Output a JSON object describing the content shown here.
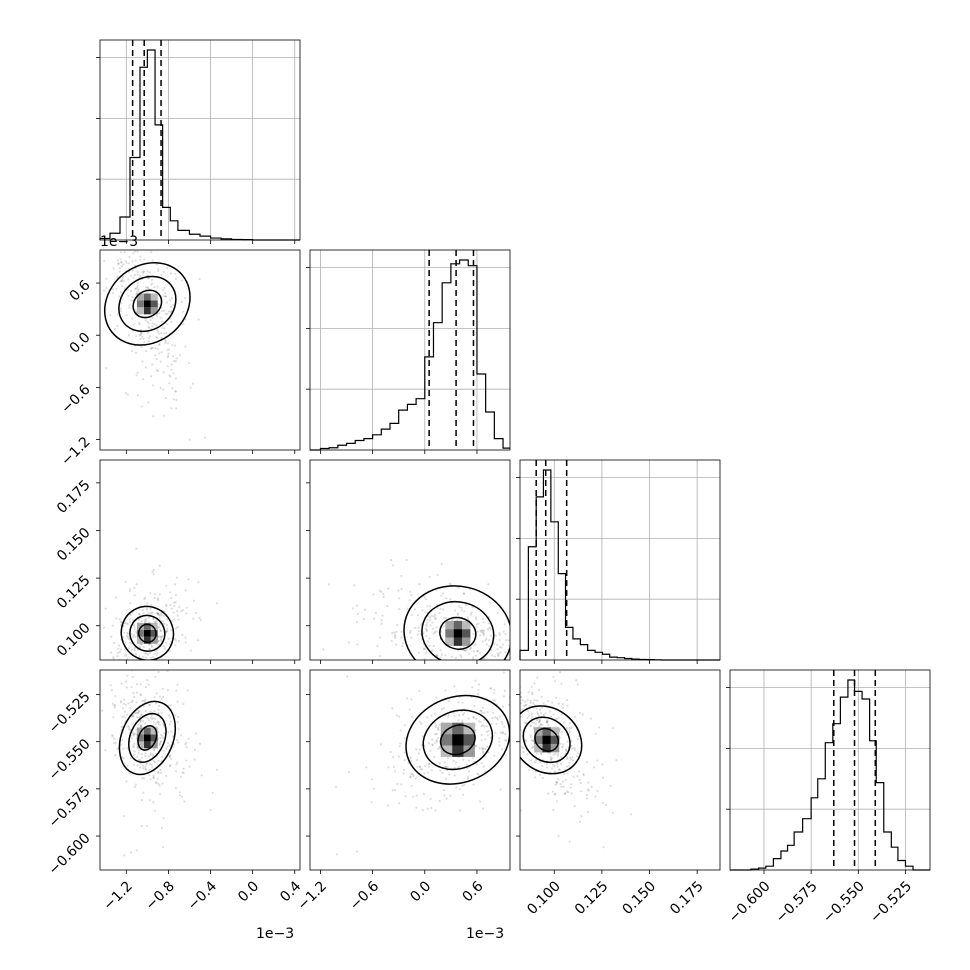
{
  "chart_data": {
    "type": "corner",
    "title": "",
    "grid": true,
    "parameters": [
      {
        "tick_labels": [
          "−1.2",
          "−0.8",
          "−0.4",
          "0.0",
          "0.4"
        ],
        "offset_label": "1e−3",
        "range": [
          -1.45,
          0.45
        ]
      },
      {
        "tick_labels": [
          "−1.2",
          "−0.6",
          "0.0",
          "0.6"
        ],
        "offset_label": "1e−3",
        "range": [
          -1.32,
          0.98
        ]
      },
      {
        "tick_labels": [
          "0.100",
          "0.125",
          "0.150",
          "0.175"
        ],
        "offset_label": "",
        "range": [
          0.082,
          0.187
        ]
      },
      {
        "tick_labels": [
          "−0.600",
          "−0.575",
          "−0.550",
          "−0.525"
        ],
        "offset_label": "",
        "range": [
          -0.618,
          -0.512
        ]
      }
    ],
    "tick_values": [
      [
        -1.2,
        -0.8,
        -0.4,
        0.0,
        0.4
      ],
      [
        -1.2,
        -0.6,
        0.0,
        0.6
      ],
      [
        0.1,
        0.125,
        0.15,
        0.175
      ],
      [
        -0.6,
        -0.575,
        -0.55,
        -0.525
      ]
    ],
    "quantiles": [
      [
        -1.14,
        -1.03,
        -0.87
      ],
      [
        0.05,
        0.36,
        0.56
      ],
      [
        0.0905,
        0.0955,
        0.1065
      ],
      [
        -0.563,
        -0.552,
        -0.541
      ]
    ],
    "histograms": [
      {
        "bin_edges": [
          -1.45,
          -1.355,
          -1.26,
          -1.165,
          -1.07,
          -1.0,
          -0.927,
          -0.855,
          -0.782,
          -0.71,
          -0.6,
          -0.5,
          -0.4,
          -0.3,
          -0.2,
          -0.1,
          0.0,
          0.45
        ],
        "counts": [
          0.8,
          3.5,
          12,
          43,
          90,
          99,
          60,
          17,
          10,
          5,
          3,
          2,
          1,
          0.6,
          0.3,
          0.2,
          0
        ]
      },
      {
        "bin_edges": [
          -1.32,
          -1.2,
          -1.1,
          -1.0,
          -0.9,
          -0.8,
          -0.7,
          -0.6,
          -0.5,
          -0.4,
          -0.3,
          -0.2,
          -0.1,
          0.0,
          0.1,
          0.2,
          0.3,
          0.4,
          0.5,
          0.6,
          0.7,
          0.8,
          0.9,
          0.98
        ],
        "counts": [
          0,
          0.8,
          1.2,
          2.5,
          3.5,
          5,
          6,
          8,
          11,
          14,
          21,
          24,
          27,
          49,
          67,
          88,
          98,
          100,
          97,
          40,
          20,
          6,
          1
        ]
      },
      {
        "bin_edges": [
          0.082,
          0.0864,
          0.0905,
          0.0943,
          0.0982,
          0.1021,
          0.1059,
          0.1098,
          0.1137,
          0.1175,
          0.1214,
          0.1253,
          0.1291,
          0.133,
          0.1369,
          0.1407,
          0.1446,
          0.1485,
          0.1524,
          0.1562,
          0.187
        ],
        "counts": [
          5,
          59,
          85,
          99,
          72,
          45,
          17,
          11,
          8,
          5,
          4,
          3,
          1.5,
          1.2,
          0.8,
          0.5,
          0.3,
          0.2,
          0.1,
          0
        ]
      },
      {
        "bin_edges": [
          -0.618,
          -0.6069,
          -0.6028,
          -0.599,
          -0.595,
          -0.591,
          -0.5875,
          -0.584,
          -0.5795,
          -0.575,
          -0.5715,
          -0.5675,
          -0.5635,
          -0.5595,
          -0.5555,
          -0.552,
          -0.548,
          -0.544,
          -0.5405,
          -0.5365,
          -0.5325,
          -0.529,
          -0.525,
          -0.521,
          -0.512
        ],
        "counts": [
          0,
          0.5,
          1,
          2,
          6,
          10,
          13,
          20,
          27,
          38,
          48,
          67,
          77,
          91,
          100,
          94,
          90,
          68,
          46,
          20,
          12,
          5,
          2,
          0
        ]
      }
    ],
    "pairs": [
      {
        "row": 1,
        "col": 0,
        "center": [
          -1.0,
          0.36
        ],
        "rho": -0.55,
        "sigma": [
          0.12,
          0.33
        ]
      },
      {
        "row": 2,
        "col": 0,
        "center": [
          -1.0,
          0.096
        ],
        "rho": 0.35,
        "sigma": [
          0.12,
          0.008
        ]
      },
      {
        "row": 2,
        "col": 1,
        "center": [
          0.38,
          0.096
        ],
        "rho": -0.45,
        "sigma": [
          0.32,
          0.008
        ]
      },
      {
        "row": 3,
        "col": 0,
        "center": [
          -1.0,
          -0.548
        ],
        "rho": -0.25,
        "sigma": [
          0.12,
          0.011
        ]
      },
      {
        "row": 3,
        "col": 1,
        "center": [
          0.38,
          -0.549
        ],
        "rho": 0.5,
        "sigma": [
          0.3,
          0.011
        ]
      },
      {
        "row": 3,
        "col": 2,
        "center": [
          0.096,
          -0.549
        ],
        "rho": -0.6,
        "sigma": [
          0.008,
          0.011
        ]
      }
    ]
  }
}
